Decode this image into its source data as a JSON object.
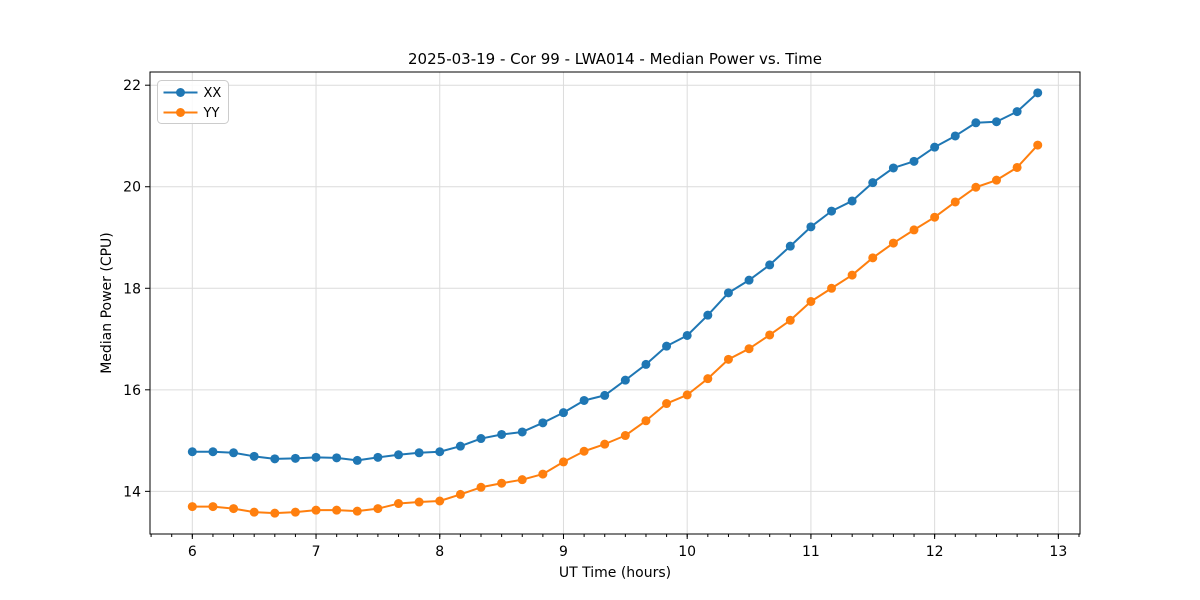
{
  "chart_data": {
    "type": "line",
    "title": "2025-03-19 - Cor 99 - LWA014 - Median Power vs. Time",
    "xlabel": "UT Time (hours)",
    "ylabel": "Median Power (CPU)",
    "xlim": [
      5.658,
      13.175
    ],
    "ylim": [
      13.16,
      22.26
    ],
    "x_ticks": [
      6,
      7,
      8,
      9,
      10,
      11,
      12,
      13
    ],
    "y_ticks": [
      14,
      16,
      18,
      20,
      22
    ],
    "x_minor_step": 0.16667,
    "grid": true,
    "grid_color": "#dcdcdc",
    "spine_color": "#000000",
    "legend_position": "upper-left",
    "x": [
      6.0,
      6.1667,
      6.3333,
      6.5,
      6.6667,
      6.8333,
      7.0,
      7.1667,
      7.3333,
      7.5,
      7.6667,
      7.8333,
      8.0,
      8.1667,
      8.3333,
      8.5,
      8.6667,
      8.8333,
      9.0,
      9.1667,
      9.3333,
      9.5,
      9.6667,
      9.8333,
      10.0,
      10.1667,
      10.3333,
      10.5,
      10.6667,
      10.8333,
      11.0,
      11.1667,
      11.3333,
      11.5,
      11.6667,
      11.8333,
      12.0,
      12.1667,
      12.3333,
      12.5,
      12.6667,
      12.8333
    ],
    "series": [
      {
        "name": "XX",
        "color": "#1f77b4",
        "values": [
          14.78,
          14.78,
          14.76,
          14.69,
          14.64,
          14.65,
          14.67,
          14.66,
          14.61,
          14.67,
          14.72,
          14.76,
          14.78,
          14.89,
          15.04,
          15.12,
          15.17,
          15.35,
          15.55,
          15.79,
          15.89,
          16.19,
          16.5,
          16.86,
          17.07,
          17.47,
          17.91,
          18.16,
          18.46,
          18.83,
          19.21,
          19.52,
          19.72,
          20.08,
          20.37,
          20.5,
          20.78,
          21.0,
          21.26,
          21.28,
          21.48,
          21.85
        ]
      },
      {
        "name": "YY",
        "color": "#ff7f0e",
        "values": [
          13.7,
          13.7,
          13.66,
          13.59,
          13.57,
          13.59,
          13.63,
          13.63,
          13.61,
          13.66,
          13.76,
          13.79,
          13.81,
          13.94,
          14.08,
          14.16,
          14.23,
          14.34,
          14.58,
          14.79,
          14.93,
          15.1,
          15.39,
          15.73,
          15.9,
          16.22,
          16.6,
          16.81,
          17.08,
          17.37,
          17.74,
          18.0,
          18.26,
          18.6,
          18.89,
          19.15,
          19.4,
          19.7,
          19.99,
          20.13,
          20.38,
          20.82
        ]
      }
    ]
  }
}
